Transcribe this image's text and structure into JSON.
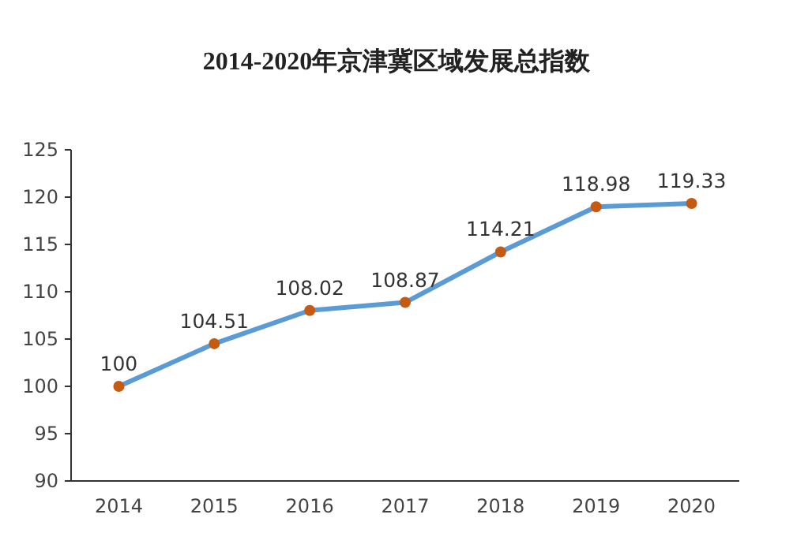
{
  "chart_data": {
    "type": "line",
    "title": "2014-2020年京津冀区域发展总指数",
    "categories": [
      "2014",
      "2015",
      "2016",
      "2017",
      "2018",
      "2019",
      "2020"
    ],
    "series": [
      {
        "color": "#5b9bd5",
        "values": [
          100,
          104.51,
          108.02,
          108.87,
          114.21,
          118.98,
          119.33
        ]
      }
    ],
    "ylim": [
      90,
      125
    ],
    "yticks": [
      90,
      95,
      100,
      105,
      110,
      115,
      120,
      125
    ],
    "data_labels": true,
    "marker": "circle",
    "grid": false
  }
}
